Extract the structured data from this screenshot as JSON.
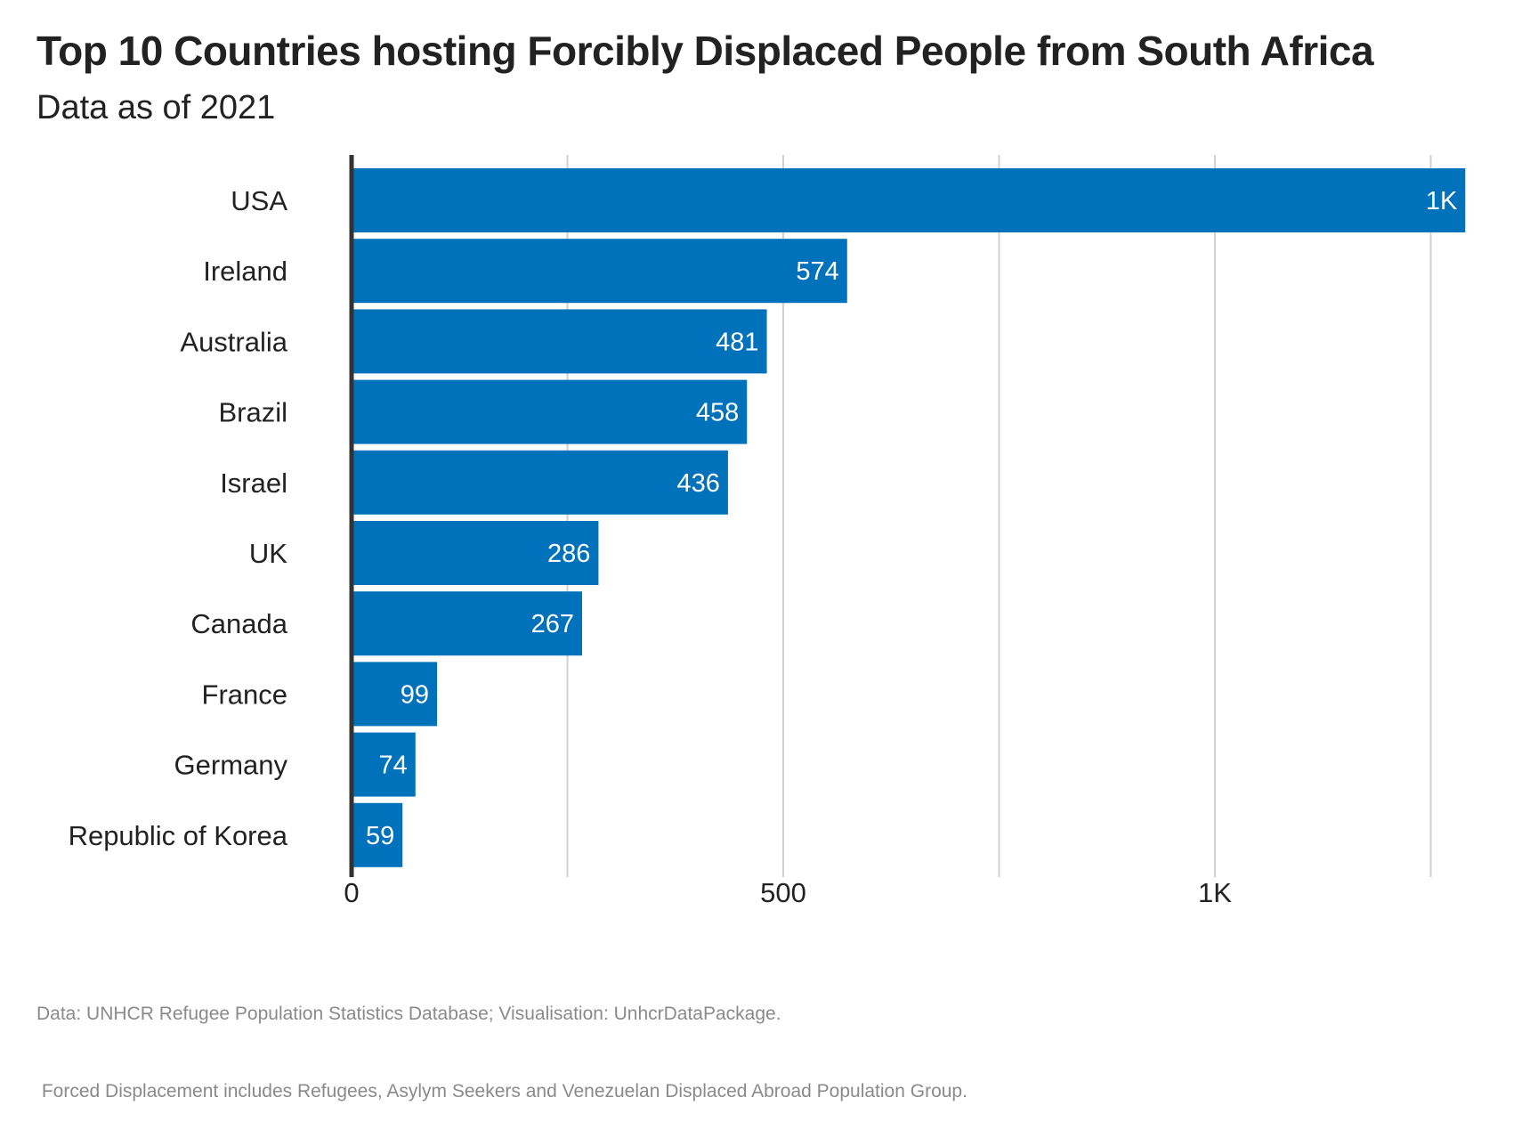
{
  "chart_data": {
    "type": "bar",
    "orientation": "horizontal",
    "title": "Top 10 Countries hosting Forcibly Displaced People from South Africa",
    "subtitle": "Data as of 2021",
    "categories": [
      "USA",
      "Ireland",
      "Australia",
      "Brazil",
      "Israel",
      "UK",
      "Canada",
      "France",
      "Germany",
      "Republic of Korea"
    ],
    "values": [
      1290,
      574,
      481,
      458,
      436,
      286,
      267,
      99,
      74,
      59
    ],
    "value_labels": [
      "1K",
      "574",
      "481",
      "458",
      "436",
      "286",
      "267",
      "99",
      "74",
      "59"
    ],
    "xlim": [
      0,
      1290
    ],
    "x_ticks": [
      0,
      500,
      1000
    ],
    "x_tick_labels": [
      "0",
      "500",
      "1K"
    ],
    "minor_gridlines": [
      250,
      750,
      1250
    ],
    "grid": true,
    "bar_color": "#0072bc",
    "axis_color": "#333333",
    "grid_color": "#d0d0d0",
    "caption": [
      "Data: UNHCR Refugee Population Statistics Database; Visualisation: UnhcrDataPackage.",
      " Forced Displacement includes Refugees, Asylym Seekers and Venezuelan Displaced Abroad Population Group."
    ]
  }
}
